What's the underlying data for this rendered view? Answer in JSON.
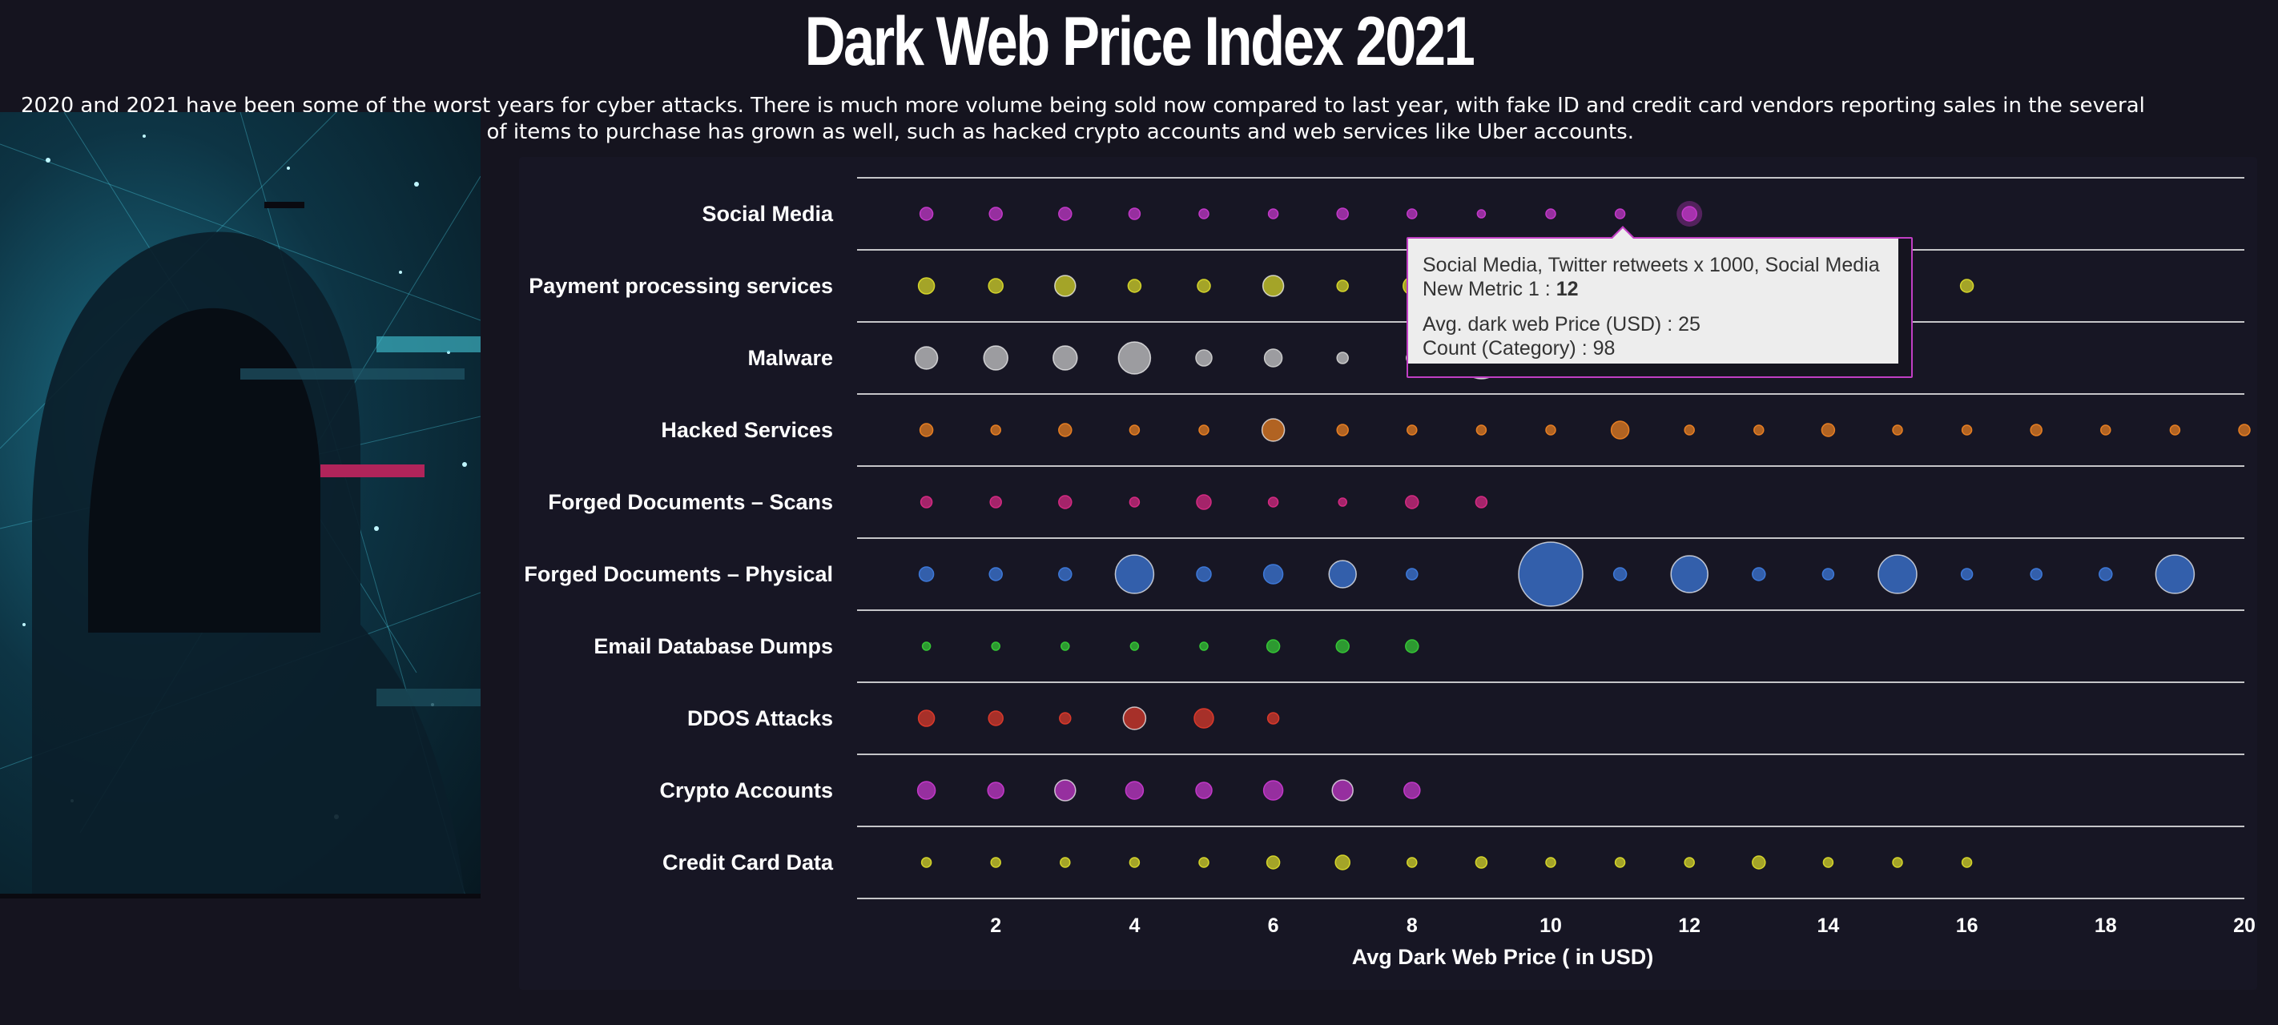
{
  "title": "Dark Web Price Index 2021",
  "intro": "2020 and 2021 have been some of the worst years for cyber attacks. There is much more volume being sold now compared to last year, with fake ID and credit card vendors reporting sales in the several thousand. Not only quantity, but the variety of items to purchase has grown as well, such as hacked crypto accounts and web services like Uber accounts.",
  "tooltip": {
    "line1": "Social Media, Twitter retweets x 1000, Social Media",
    "metric_label": "New Metric 1 : ",
    "metric_value": "12",
    "price_line": "Avg. dark web Price (USD) : 25",
    "count_line": "Count (Category) : 98"
  },
  "colors": {
    "background": "#15141f",
    "panel": "#171624",
    "tooltip_border": "#c13fc4"
  },
  "chart_data": {
    "type": "scatter",
    "xlabel": "Avg Dark Web Price ( in USD)",
    "xlim": [
      0,
      20
    ],
    "xticks": [
      2,
      4,
      6,
      8,
      10,
      12,
      14,
      16,
      18,
      20
    ],
    "categories": [
      "Social Media",
      "Payment processing services",
      "Malware",
      "Hacked Services",
      "Forged Documents – Scans",
      "Forged Documents – Physical",
      "Email Database Dumps",
      "DDOS Attacks",
      "Crypto Accounts",
      "Credit Card Data"
    ],
    "series": [
      {
        "category": "Social Media",
        "color": "#c238c8",
        "x": [
          1,
          2,
          3,
          4,
          5,
          6,
          7,
          8,
          9,
          10,
          11,
          12
        ],
        "size": [
          8,
          8,
          8,
          7,
          6,
          6,
          7,
          6,
          5,
          6,
          6,
          9
        ]
      },
      {
        "category": "Payment processing services",
        "color": "#d4d42a",
        "x": [
          1,
          2,
          3,
          4,
          5,
          6,
          7,
          8,
          9,
          10,
          11,
          12,
          13,
          14,
          15,
          16
        ],
        "size": [
          10,
          9,
          13,
          8,
          8,
          13,
          7,
          11,
          8,
          8,
          8,
          8,
          8,
          8,
          8,
          8
        ]
      },
      {
        "category": "Malware",
        "color": "#c9c9c9",
        "x": [
          1,
          2,
          3,
          4,
          5,
          6,
          7,
          8,
          9,
          10,
          11,
          12,
          13,
          14
        ],
        "size": [
          14,
          15,
          15,
          20,
          10,
          11,
          7,
          7,
          26,
          18,
          16,
          14,
          12,
          14
        ]
      },
      {
        "category": "Hacked Services",
        "color": "#e67e22",
        "x": [
          1,
          2,
          3,
          4,
          5,
          6,
          7,
          8,
          9,
          10,
          11,
          12,
          13,
          14,
          15,
          16,
          17,
          18,
          19,
          20
        ],
        "size": [
          8,
          6,
          8,
          6,
          6,
          14,
          7,
          6,
          6,
          6,
          11,
          6,
          6,
          8,
          6,
          6,
          7,
          6,
          6,
          7
        ]
      },
      {
        "category": "Forged Documents – Scans",
        "color": "#d42a82",
        "x": [
          1,
          2,
          3,
          4,
          5,
          6,
          7,
          8,
          9
        ],
        "size": [
          7,
          7,
          8,
          6,
          9,
          6,
          5,
          8,
          7
        ]
      },
      {
        "category": "Forged Documents – Physical",
        "color": "#3d78d8",
        "x": [
          1,
          2,
          3,
          4,
          5,
          6,
          7,
          8,
          10,
          11,
          12,
          13,
          14,
          15,
          16,
          17,
          18,
          19
        ],
        "size": [
          9,
          8,
          8,
          24,
          9,
          12,
          17,
          7,
          40,
          8,
          23,
          8,
          7,
          24,
          7,
          7,
          8,
          24
        ]
      },
      {
        "category": "Email Database Dumps",
        "color": "#35c635",
        "x": [
          1,
          2,
          3,
          4,
          5,
          6,
          7,
          8
        ],
        "size": [
          5,
          5,
          5,
          5,
          5,
          8,
          8,
          8
        ]
      },
      {
        "category": "DDOS Attacks",
        "color": "#d8392b",
        "x": [
          1,
          2,
          3,
          4,
          5,
          6
        ],
        "size": [
          10,
          9,
          7,
          14,
          12,
          7
        ]
      },
      {
        "category": "Crypto Accounts",
        "color": "#c238c8",
        "x": [
          1,
          2,
          3,
          4,
          5,
          6,
          7,
          8
        ],
        "size": [
          11,
          10,
          13,
          11,
          10,
          12,
          13,
          10
        ]
      },
      {
        "category": "Credit Card Data",
        "color": "#d4d42a",
        "x": [
          1,
          2,
          3,
          4,
          5,
          6,
          7,
          8,
          9,
          10,
          11,
          12,
          13,
          14,
          15,
          16
        ],
        "size": [
          6,
          6,
          6,
          6,
          6,
          8,
          9,
          6,
          7,
          6,
          6,
          6,
          8,
          6,
          6,
          6
        ]
      }
    ],
    "highlight": {
      "category": "Social Media",
      "x": 12
    }
  }
}
